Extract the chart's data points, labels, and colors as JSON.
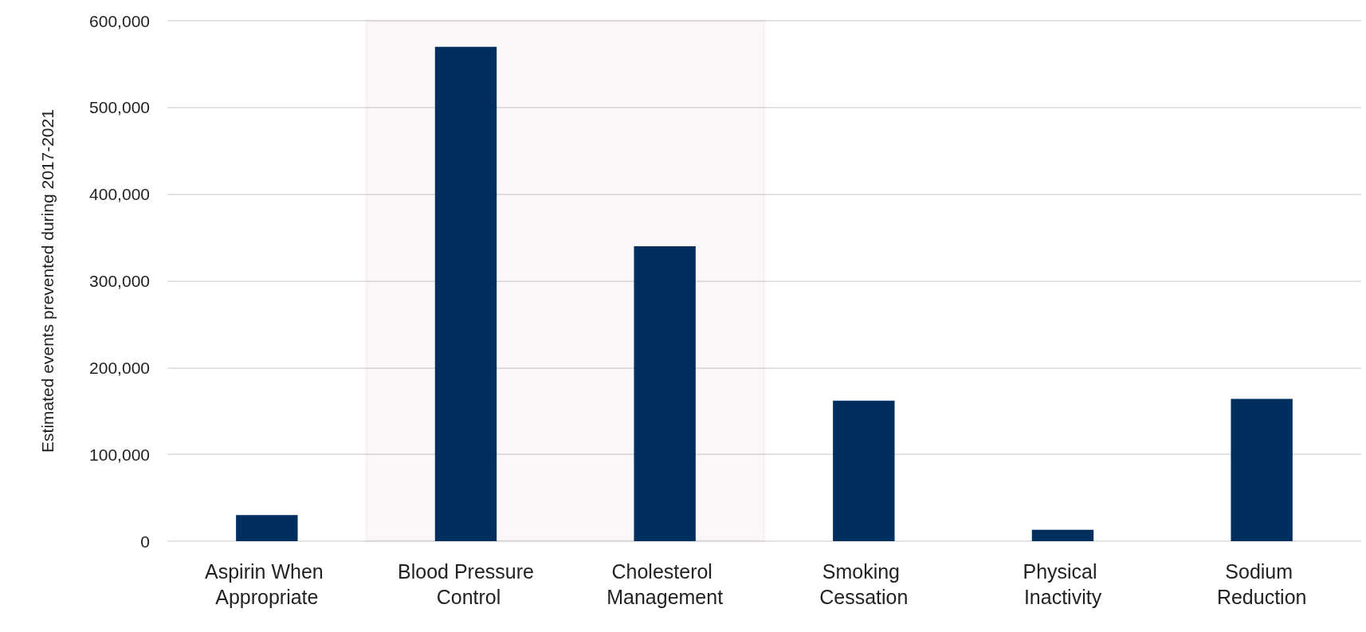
{
  "chart_data": {
    "type": "bar",
    "ylabel": "Estimated events prevented during 2017-2021",
    "categories": [
      "Aspirin When Appropriate",
      "Blood Pressure Control",
      "Cholesterol Management",
      "Smoking Cessation",
      "Physical Inactivity",
      "Sodium Reduction"
    ],
    "values": [
      30000,
      570000,
      340000,
      162000,
      13000,
      164000
    ],
    "color": "#002f5f",
    "ylim": [
      0,
      600000
    ],
    "yticks": [
      0,
      {
        "value": 100000,
        "label": "100,000"
      },
      {
        "value": 200000,
        "label": "200,000"
      },
      {
        "value": 300000,
        "label": "300,000"
      },
      {
        "value": 400000,
        "label": "400,000"
      },
      {
        "value": 500000,
        "label": "500,000"
      },
      {
        "value": 600000,
        "label": "600,000"
      }
    ],
    "grid": "y",
    "bands": [
      {
        "axis": "x",
        "from": "Blood Pressure Control",
        "to": "Cholesterol Management",
        "color": "#7a1436"
      }
    ]
  }
}
